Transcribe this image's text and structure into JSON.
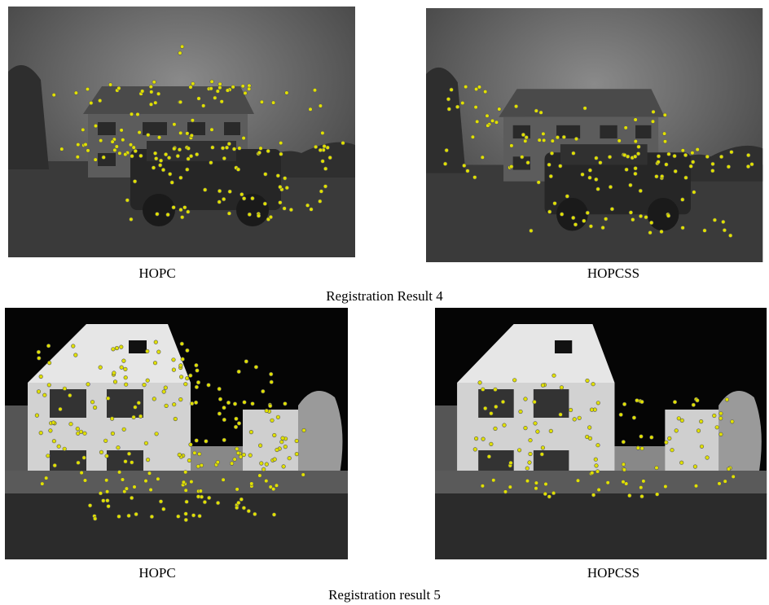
{
  "figure": {
    "rows": [
      {
        "panels": [
          {
            "caption": "HOPC"
          },
          {
            "caption": "HOPCSS"
          }
        ],
        "caption": "Registration Result 4"
      },
      {
        "panels": [
          {
            "caption": "HOPC"
          },
          {
            "caption": "HOPCSS"
          }
        ],
        "caption": "Registration result 5"
      }
    ]
  }
}
